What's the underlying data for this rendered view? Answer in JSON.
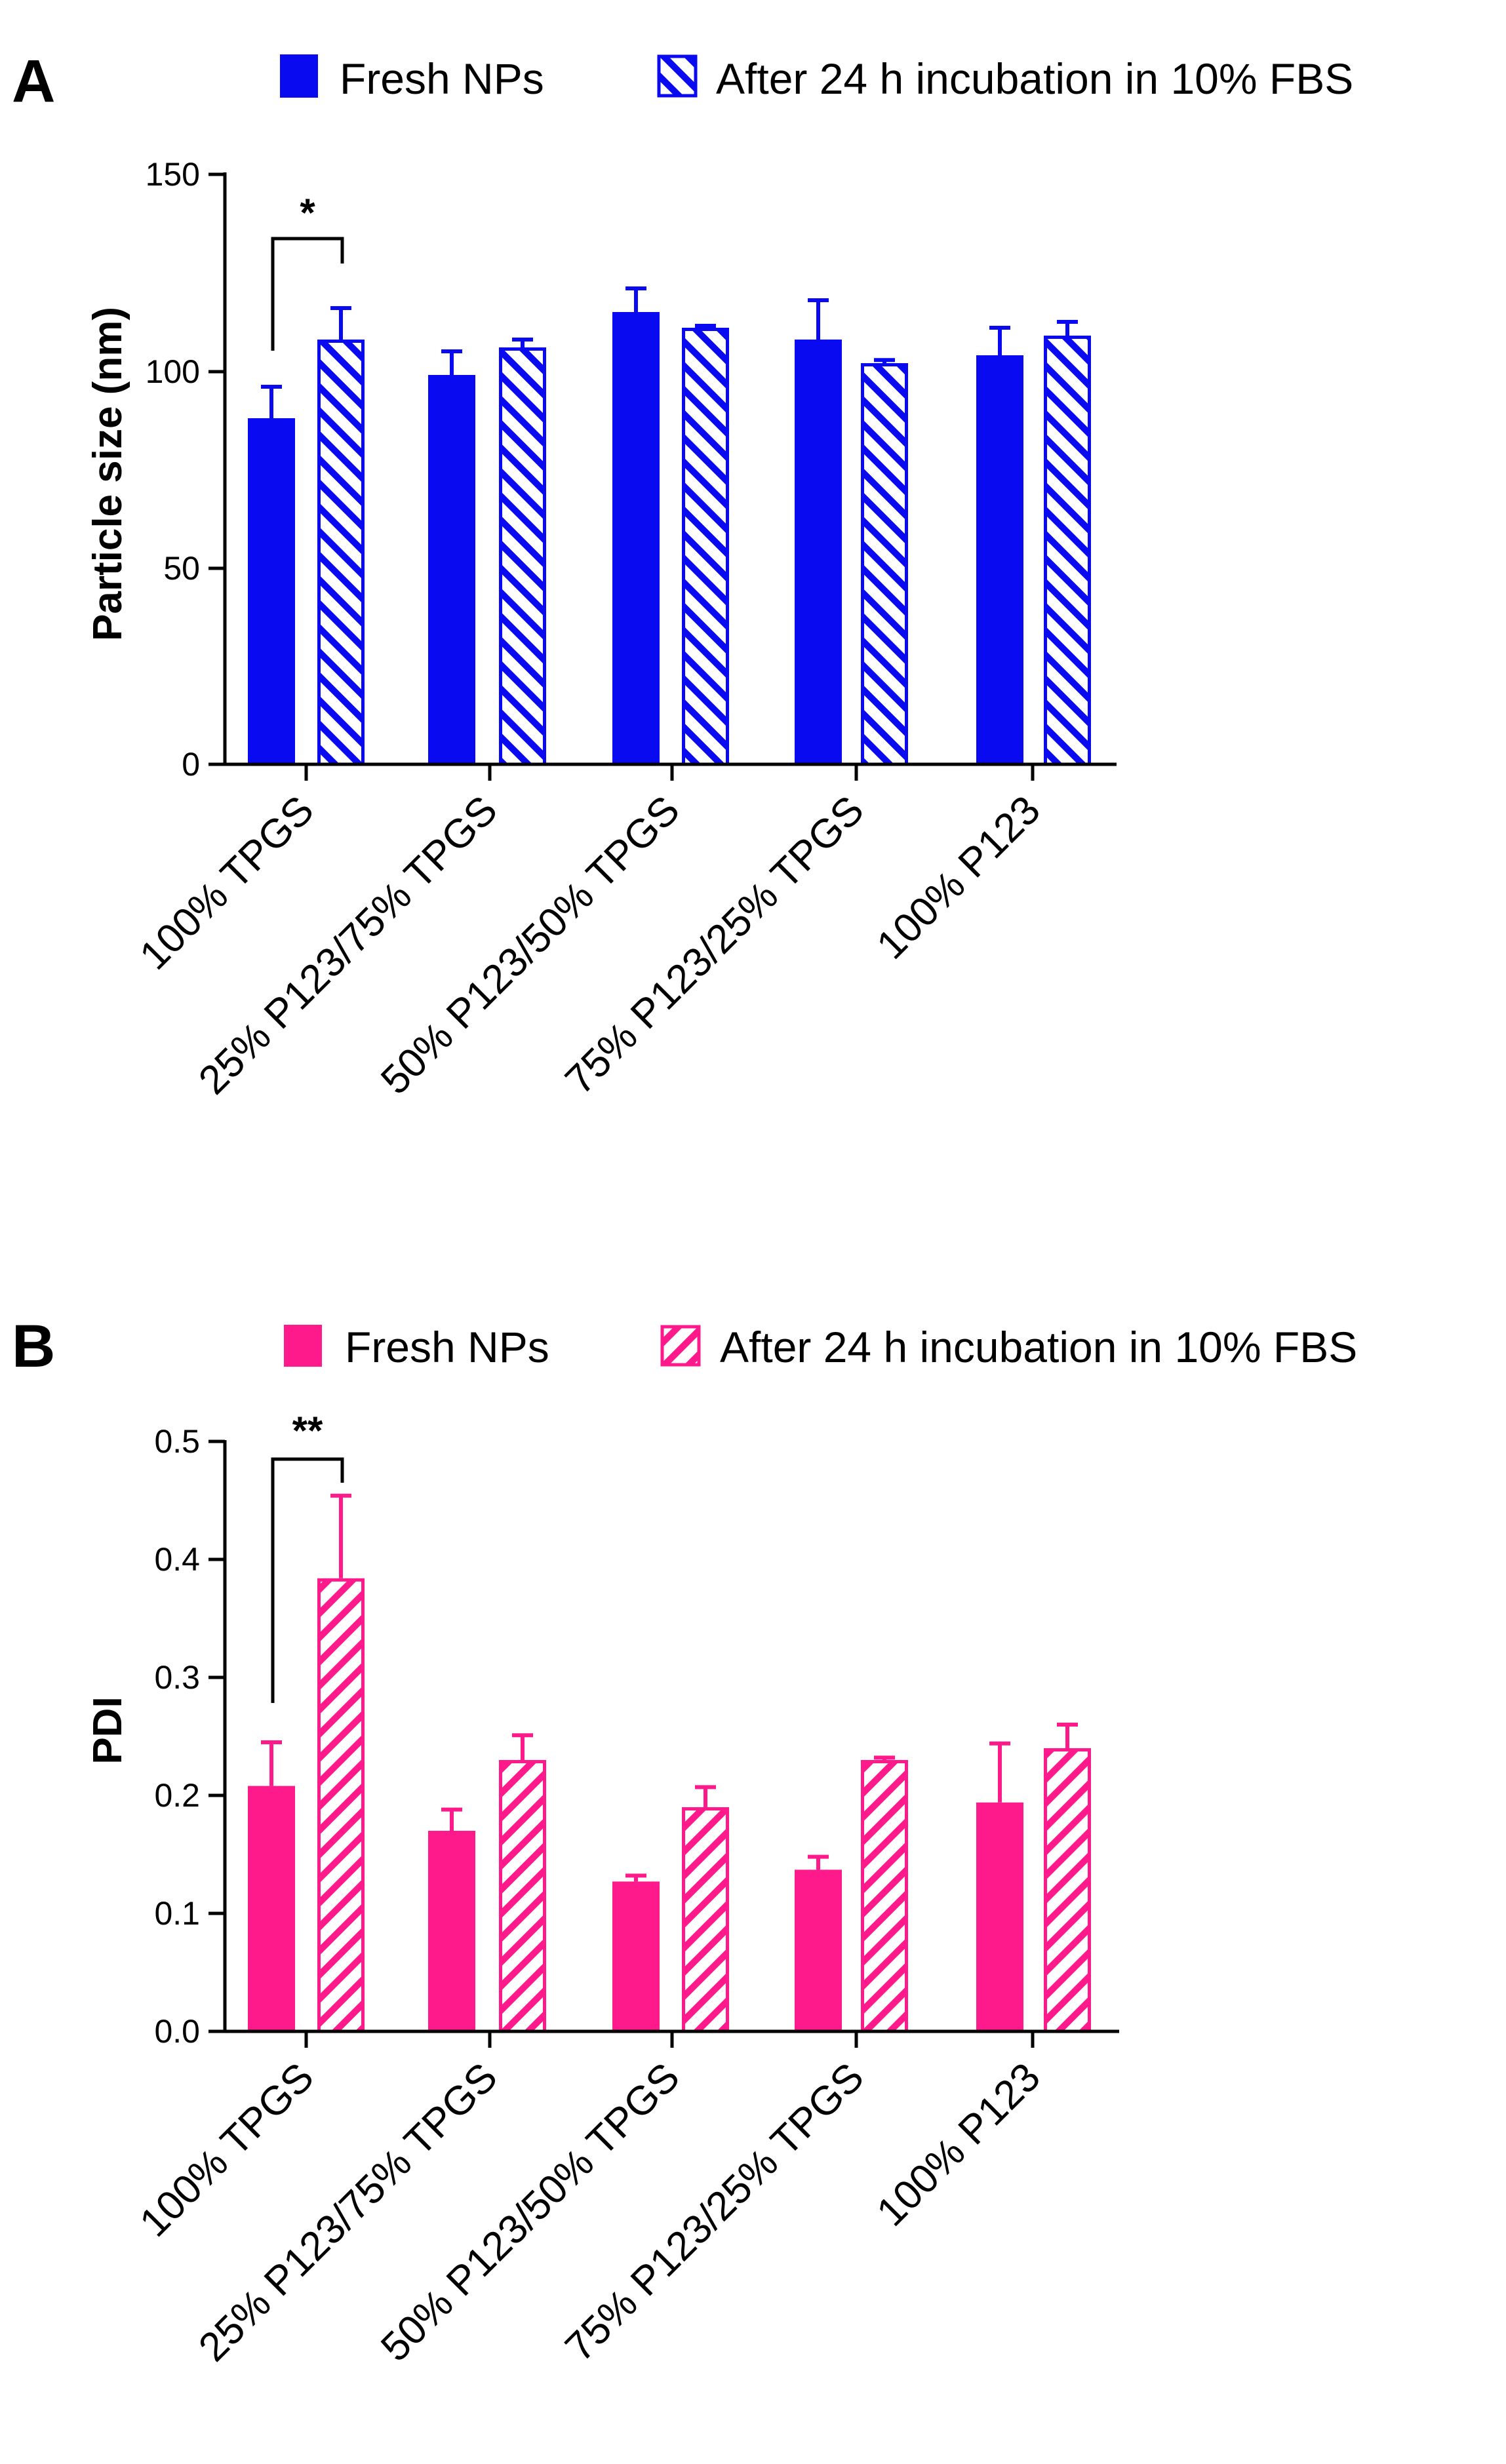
{
  "chart_data": [
    {
      "type": "bar",
      "panel": "A",
      "legend": [
        "Fresh NPs",
        "After 24 h incubation in 10% FBS"
      ],
      "categories": [
        "100% TPGS",
        "25% P123/75% TPGS",
        "50% P123/50% TPGS",
        "75% P123/25% TPGS",
        "100% P123"
      ],
      "series": [
        {
          "name": "Fresh NPs",
          "values": [
            88,
            99,
            115,
            108,
            104
          ],
          "errors": [
            8,
            6,
            6,
            10,
            7
          ]
        },
        {
          "name": "After 24 h incubation in 10% FBS",
          "values": [
            108,
            106,
            111,
            102,
            109
          ],
          "errors": [
            8,
            2,
            0.5,
            0.8,
            3.5
          ]
        }
      ],
      "ylabel": "Particle size (nm)",
      "xlabel": "",
      "ylim": [
        0,
        150
      ],
      "yticks": [
        "0",
        "50",
        "100",
        "150"
      ],
      "color": "#0a0af0",
      "significance": {
        "label": "*",
        "category_index": 0
      }
    },
    {
      "type": "bar",
      "panel": "B",
      "legend": [
        "Fresh NPs",
        "After 24 h incubation in 10% FBS"
      ],
      "categories": [
        "100% TPGS",
        "25% P123/75% TPGS",
        "50% P123/50% TPGS",
        "75% P123/25% TPGS",
        "100% P123"
      ],
      "series": [
        {
          "name": "Fresh NPs",
          "values": [
            0.208,
            0.17,
            0.127,
            0.137,
            0.194
          ],
          "errors": [
            0.037,
            0.018,
            0.005,
            0.011,
            0.05
          ]
        },
        {
          "name": "After 24 h incubation in 10% FBS",
          "values": [
            0.384,
            0.23,
            0.19,
            0.23,
            0.24
          ],
          "errors": [
            0.07,
            0.021,
            0.017,
            0.002,
            0.02
          ]
        }
      ],
      "ylabel": "PDI",
      "xlabel": "",
      "ylim": [
        0,
        0.5
      ],
      "yticks": [
        "0.0",
        "0.1",
        "0.2",
        "0.3",
        "0.4",
        "0.5"
      ],
      "color": "#ff1a8c",
      "significance": {
        "label": "**",
        "category_index": 0
      }
    }
  ]
}
